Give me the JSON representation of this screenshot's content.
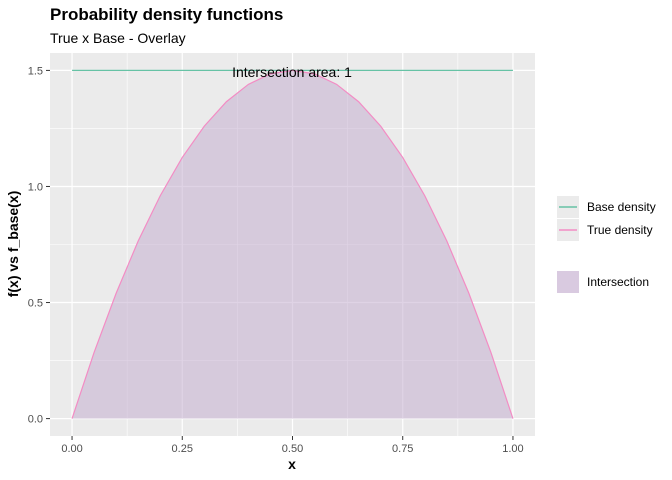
{
  "chart_data": {
    "type": "line",
    "title": "Probability density functions",
    "subtitle": "True x Base - Overlay",
    "xlabel": "x",
    "ylabel": "f(x) vs f_base(x)",
    "xlim": [
      -0.05,
      1.05
    ],
    "ylim": [
      -0.075,
      1.575
    ],
    "x_ticks": [
      0,
      0.25,
      0.5,
      0.75,
      1
    ],
    "x_tick_labels": [
      "0.00",
      "0.25",
      "0.50",
      "0.75",
      "1.00"
    ],
    "y_ticks": [
      0,
      0.5,
      1,
      1.5
    ],
    "y_tick_labels": [
      "0.0",
      "0.5",
      "1.0",
      "1.5"
    ],
    "grid": true,
    "legend_position": "right",
    "annotation": "Intersection area:  1",
    "series": [
      {
        "name": "Base density",
        "color": "#66c2a5",
        "x": [
          0,
          1
        ],
        "y": [
          1.5,
          1.5
        ]
      },
      {
        "name": "True density",
        "color": "#f38cc4",
        "x": [
          0,
          0.05,
          0.1,
          0.15,
          0.2,
          0.25,
          0.3,
          0.35,
          0.4,
          0.45,
          0.5,
          0.55,
          0.6,
          0.65,
          0.7,
          0.75,
          0.8,
          0.85,
          0.9,
          0.95,
          1
        ],
        "y": [
          0,
          0.285,
          0.54,
          0.765,
          0.96,
          1.125,
          1.26,
          1.365,
          1.44,
          1.485,
          1.5,
          1.485,
          1.44,
          1.365,
          1.26,
          1.125,
          0.96,
          0.765,
          0.54,
          0.285,
          0
        ]
      }
    ],
    "fill": {
      "name": "Intersection",
      "color": "#c5aed0"
    }
  }
}
